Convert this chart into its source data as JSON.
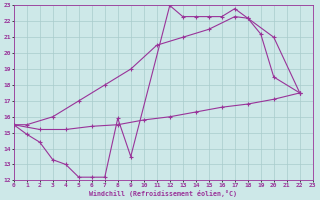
{
  "bg_color": "#cde8e8",
  "grid_color": "#a8cccc",
  "line_color": "#993399",
  "line1_x": [
    0,
    1,
    2,
    3,
    4,
    5,
    6,
    7,
    8,
    9,
    12,
    13,
    14,
    15,
    16,
    17,
    18,
    19,
    20,
    22
  ],
  "line1_y": [
    15.5,
    14.9,
    14.4,
    13.3,
    13.0,
    12.2,
    12.2,
    12.2,
    15.9,
    13.5,
    23.0,
    22.3,
    22.3,
    22.3,
    22.3,
    22.8,
    22.2,
    21.2,
    18.5,
    17.5
  ],
  "line2_x": [
    0,
    1,
    3,
    5,
    7,
    9,
    11,
    13,
    15,
    17,
    18,
    20,
    22
  ],
  "line2_y": [
    15.5,
    15.5,
    16.0,
    17.0,
    18.0,
    19.0,
    20.5,
    21.0,
    21.5,
    22.3,
    22.2,
    21.0,
    17.5
  ],
  "line3_x": [
    0,
    2,
    4,
    6,
    8,
    10,
    12,
    14,
    16,
    18,
    20,
    22
  ],
  "line3_y": [
    15.5,
    15.2,
    15.2,
    15.4,
    15.5,
    15.8,
    16.0,
    16.3,
    16.6,
    16.8,
    17.1,
    17.5
  ],
  "xlim": [
    0,
    23
  ],
  "ylim": [
    12,
    23
  ],
  "xticks": [
    0,
    1,
    2,
    3,
    4,
    5,
    6,
    7,
    8,
    9,
    10,
    11,
    12,
    13,
    14,
    15,
    16,
    17,
    18,
    19,
    20,
    21,
    22,
    23
  ],
  "yticks": [
    12,
    13,
    14,
    15,
    16,
    17,
    18,
    19,
    20,
    21,
    22,
    23
  ],
  "xlabel": "Windchill (Refroidissement éolien,°C)"
}
